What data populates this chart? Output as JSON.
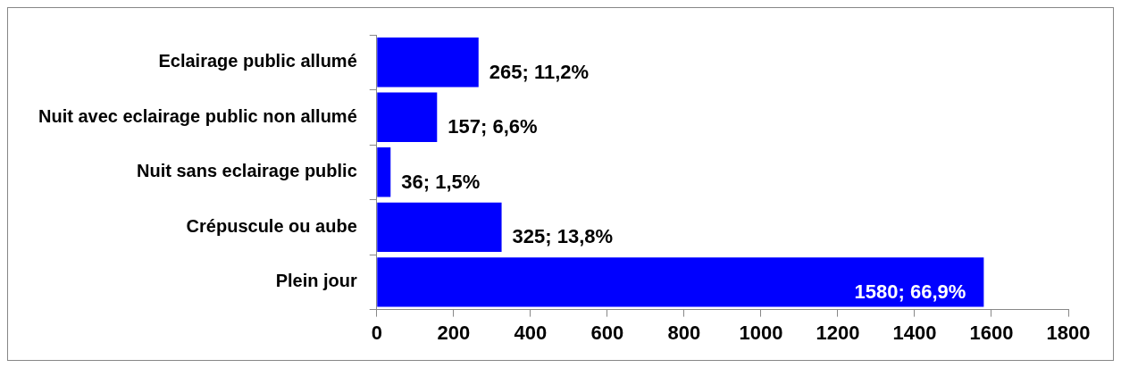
{
  "chart_data": {
    "type": "bar",
    "orientation": "horizontal",
    "categories": [
      "Eclairage public allumé",
      "Nuit avec eclairage public non allumé",
      "Nuit sans eclairage public",
      "Crépuscule ou aube",
      "Plein jour"
    ],
    "values": [
      265,
      157,
      36,
      325,
      1580
    ],
    "value_labels": [
      "265; 11,2%",
      "157; 6,6%",
      "36; 1,5%",
      "325; 13,8%",
      "1580; 66,9%"
    ],
    "color": "#0000ff",
    "xlim": [
      0,
      1800
    ],
    "xticks": [
      0,
      200,
      400,
      600,
      800,
      1000,
      1200,
      1400,
      1600,
      1800
    ],
    "grid": false,
    "legend": false
  }
}
